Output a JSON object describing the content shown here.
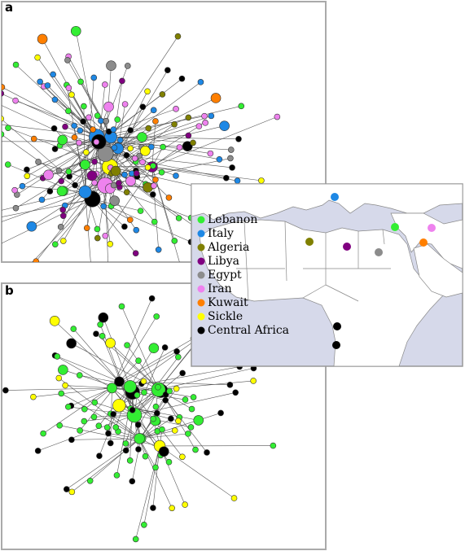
{
  "panels": {
    "a": "a",
    "b": "b"
  },
  "legend": [
    {
      "label": "Lebanon",
      "color": "#33ee33"
    },
    {
      "label": "Italy",
      "color": "#1e88e5"
    },
    {
      "label": "Algeria",
      "color": "#808000"
    },
    {
      "label": "Libya",
      "color": "#800080"
    },
    {
      "label": "Egypt",
      "color": "#8c8c8c"
    },
    {
      "label": "Iran",
      "color": "#ee82ee"
    },
    {
      "label": "Kuwait",
      "color": "#ff7f00"
    },
    {
      "label": "Sickle",
      "color": "#ffff00"
    },
    {
      "label": "Central Africa",
      "color": "#000000"
    }
  ]
}
